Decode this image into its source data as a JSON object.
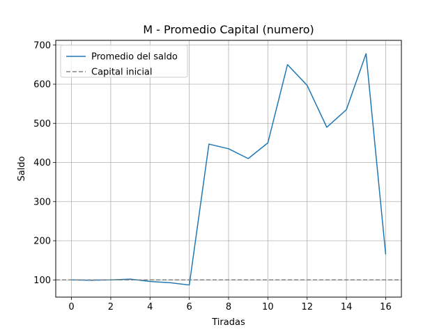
{
  "chart_data": {
    "type": "line",
    "title": "M - Promedio Capital (numero)",
    "xlabel": "Tiradas",
    "ylabel": "Saldo",
    "xlim": [
      -0.8,
      16.8
    ],
    "ylim": [
      56,
      712
    ],
    "x_ticks": [
      0,
      2,
      4,
      6,
      8,
      10,
      12,
      14,
      16
    ],
    "y_ticks": [
      100,
      200,
      300,
      400,
      500,
      600,
      700
    ],
    "grid": true,
    "legend_position": "top-left",
    "series": [
      {
        "name": "Promedio del saldo",
        "color": "#1f77b4",
        "style": "solid",
        "x": [
          0,
          1,
          2,
          3,
          4,
          5,
          6,
          7,
          8,
          9,
          10,
          11,
          12,
          13,
          14,
          15,
          16
        ],
        "y": [
          100,
          99,
          100,
          102,
          96,
          93,
          87,
          447,
          435,
          410,
          450,
          650,
          597,
          490,
          535,
          678,
          165
        ]
      },
      {
        "name": "Capital inicial",
        "color": "#808080",
        "style": "dashed",
        "hline": 100
      }
    ]
  }
}
